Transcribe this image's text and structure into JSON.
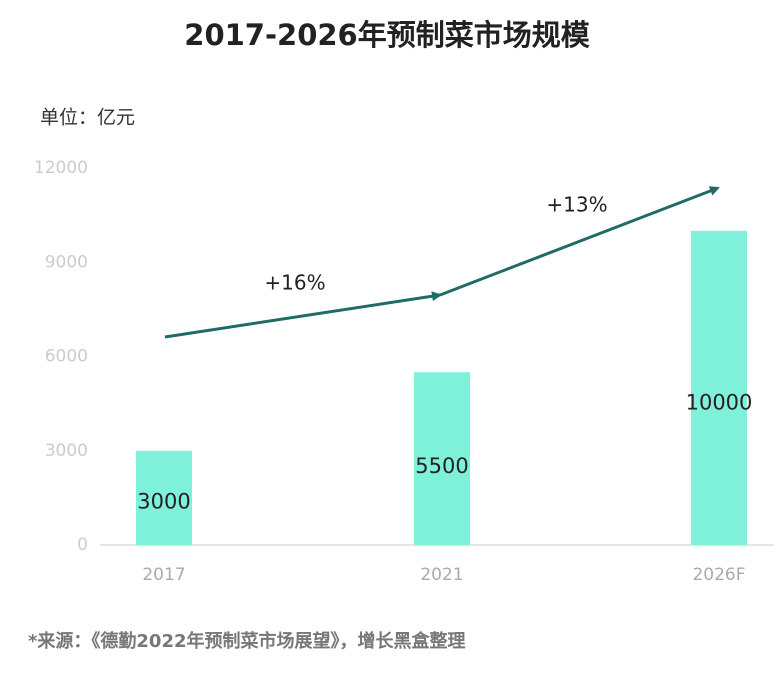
{
  "chart_data": {
    "type": "bar",
    "title": "2017-2026年预制菜市场规模",
    "unit": "单位：亿元",
    "categories": [
      "2017",
      "2021",
      "2026F"
    ],
    "values": [
      3000,
      5500,
      10000
    ],
    "color": "#7ff0d9",
    "ylim": [
      0,
      12000
    ],
    "yticks": [
      0,
      3000,
      6000,
      9000,
      12000
    ],
    "annotations": [
      "+16%",
      "+13%"
    ],
    "source": "*来源：《德勤2022年预制菜市场展望》，增长黑盒整理"
  }
}
